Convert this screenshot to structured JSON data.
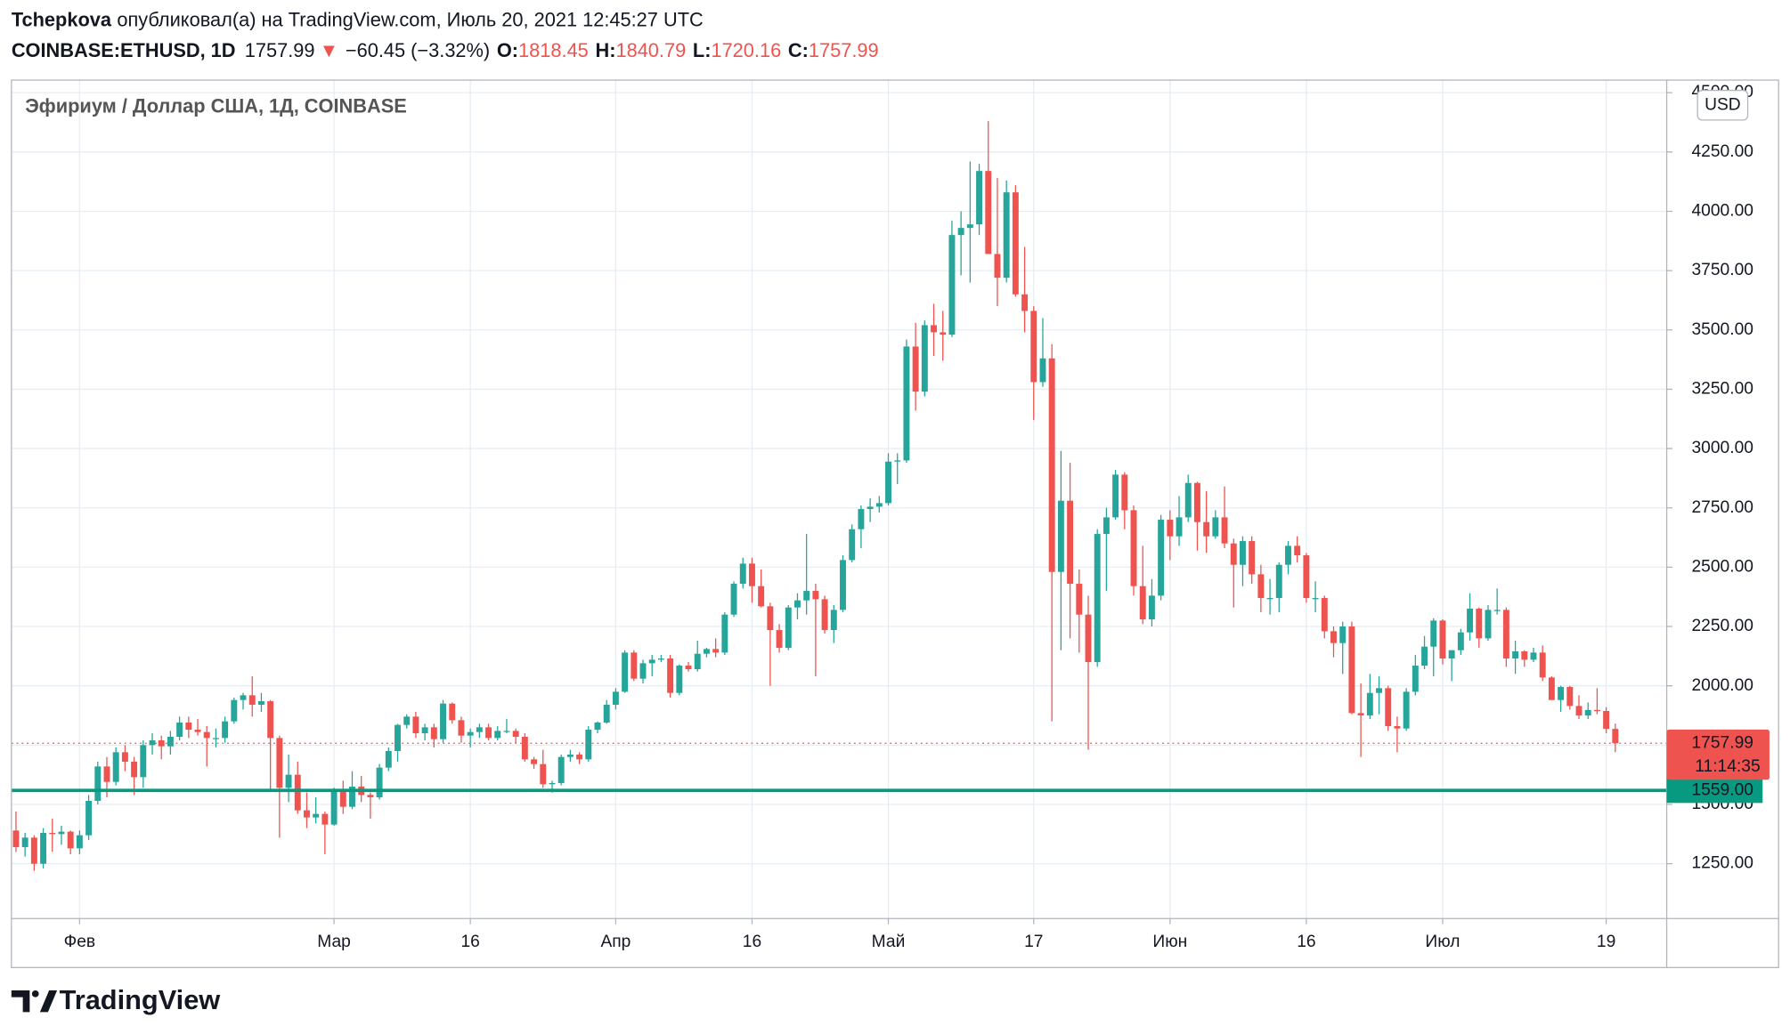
{
  "header": {
    "author": "Tchepkova",
    "published": "опубликовал(а) на TradingView.com, Июль 20, 2021 12:45:27 UTC",
    "symbol": "COINBASE:ETHUSD, 1D",
    "change_arrow": "▼",
    "change": "−60.45 (−3.32%)",
    "o": "O:",
    "h": "H:",
    "l": "L:",
    "c": "C:"
  },
  "footer": {
    "brand": "TradingView"
  },
  "chart_data": {
    "type": "candlestick",
    "title": "Эфириум / Доллар США, 1Д, COINBASE",
    "currency": "USD",
    "countdown": "11:14:35",
    "up_color": "#26a69a",
    "down_color": "#ef5350",
    "grid": true,
    "ylim": [
      1019,
      4553
    ],
    "yticks": [
      {
        "value": 1250,
        "label": "1250.00"
      },
      {
        "value": 1500,
        "label": "1500.00"
      },
      {
        "value": 1750,
        "label": "1750.00"
      },
      {
        "value": 2000,
        "label": "2000.00"
      },
      {
        "value": 2250,
        "label": "2250.00"
      },
      {
        "value": 2500,
        "label": "2500.00"
      },
      {
        "value": 2750,
        "label": "2750.00"
      },
      {
        "value": 3000,
        "label": "3000.00"
      },
      {
        "value": 3250,
        "label": "3250.00"
      },
      {
        "value": 3500,
        "label": "3500.00"
      },
      {
        "value": 3750,
        "label": "3750.00"
      },
      {
        "value": 4000,
        "label": "4000.00"
      },
      {
        "value": 4250,
        "label": "4250.00"
      },
      {
        "value": 4500,
        "label": "4500.00"
      }
    ],
    "xticks": [
      {
        "value": "02-01",
        "label": "Фев"
      },
      {
        "value": "03-01",
        "label": "Мар"
      },
      {
        "value": "03-16",
        "label": "16"
      },
      {
        "value": "04-01",
        "label": "Апр"
      },
      {
        "value": "04-16",
        "label": "16"
      },
      {
        "value": "05-01",
        "label": "Май"
      },
      {
        "value": "05-17",
        "label": "17"
      },
      {
        "value": "06-01",
        "label": "Июн"
      },
      {
        "value": "06-16",
        "label": "16"
      },
      {
        "value": "07-01",
        "label": "Июл"
      },
      {
        "value": "07-19",
        "label": "19"
      }
    ],
    "hline": {
      "value": 1559,
      "label": "1559.00",
      "color": "#089981"
    },
    "x": [
      "01-25",
      "01-26",
      "01-27",
      "01-28",
      "01-29",
      "01-30",
      "01-31",
      "02-01",
      "02-02",
      "02-03",
      "02-04",
      "02-05",
      "02-06",
      "02-07",
      "02-08",
      "02-09",
      "02-10",
      "02-11",
      "02-12",
      "02-13",
      "02-14",
      "02-15",
      "02-16",
      "02-17",
      "02-18",
      "02-19",
      "02-20",
      "02-21",
      "02-22",
      "02-23",
      "02-24",
      "02-25",
      "02-26",
      "02-27",
      "02-28",
      "03-01",
      "03-02",
      "03-03",
      "03-04",
      "03-05",
      "03-06",
      "03-07",
      "03-08",
      "03-09",
      "03-10",
      "03-11",
      "03-12",
      "03-13",
      "03-14",
      "03-15",
      "03-16",
      "03-17",
      "03-18",
      "03-19",
      "03-20",
      "03-21",
      "03-22",
      "03-23",
      "03-24",
      "03-25",
      "03-26",
      "03-27",
      "03-28",
      "03-29",
      "03-30",
      "03-31",
      "04-01",
      "04-02",
      "04-03",
      "04-04",
      "04-05",
      "04-06",
      "04-07",
      "04-08",
      "04-09",
      "04-10",
      "04-11",
      "04-12",
      "04-13",
      "04-14",
      "04-15",
      "04-16",
      "04-17",
      "04-18",
      "04-19",
      "04-20",
      "04-21",
      "04-22",
      "04-23",
      "04-24",
      "04-25",
      "04-26",
      "04-27",
      "04-28",
      "04-29",
      "04-30",
      "05-01",
      "05-02",
      "05-03",
      "05-04",
      "05-05",
      "05-06",
      "05-07",
      "05-08",
      "05-09",
      "05-10",
      "05-11",
      "05-12",
      "05-13",
      "05-14",
      "05-15",
      "05-16",
      "05-17",
      "05-18",
      "05-19",
      "05-20",
      "05-21",
      "05-22",
      "05-23",
      "05-24",
      "05-25",
      "05-26",
      "05-27",
      "05-28",
      "05-29",
      "05-30",
      "05-31",
      "06-01",
      "06-02",
      "06-03",
      "06-04",
      "06-05",
      "06-06",
      "06-07",
      "06-08",
      "06-09",
      "06-10",
      "06-11",
      "06-12",
      "06-13",
      "06-14",
      "06-15",
      "06-16",
      "06-17",
      "06-18",
      "06-19",
      "06-20",
      "06-21",
      "06-22",
      "06-23",
      "06-24",
      "06-25",
      "06-26",
      "06-27",
      "06-28",
      "06-29",
      "06-30",
      "07-01",
      "07-02",
      "07-03",
      "07-04",
      "07-05",
      "07-06",
      "07-07",
      "07-08",
      "07-09",
      "07-10",
      "07-11",
      "07-12",
      "07-13",
      "07-14",
      "07-15",
      "07-16",
      "07-17",
      "07-18",
      "07-19",
      "07-20"
    ],
    "candles": [
      [
        1390,
        1470,
        1300,
        1320
      ],
      [
        1320,
        1380,
        1280,
        1360
      ],
      [
        1360,
        1370,
        1220,
        1250
      ],
      [
        1250,
        1400,
        1230,
        1380
      ],
      [
        1380,
        1440,
        1300,
        1375
      ],
      [
        1375,
        1410,
        1330,
        1385
      ],
      [
        1385,
        1390,
        1290,
        1315
      ],
      [
        1315,
        1390,
        1290,
        1370
      ],
      [
        1370,
        1540,
        1350,
        1515
      ],
      [
        1515,
        1680,
        1500,
        1660
      ],
      [
        1660,
        1700,
        1530,
        1595
      ],
      [
        1595,
        1740,
        1580,
        1720
      ],
      [
        1720,
        1750,
        1640,
        1680
      ],
      [
        1680,
        1700,
        1540,
        1615
      ],
      [
        1615,
        1770,
        1570,
        1750
      ],
      [
        1750,
        1800,
        1710,
        1770
      ],
      [
        1770,
        1790,
        1690,
        1745
      ],
      [
        1745,
        1810,
        1710,
        1785
      ],
      [
        1785,
        1870,
        1770,
        1845
      ],
      [
        1845,
        1870,
        1780,
        1815
      ],
      [
        1815,
        1860,
        1790,
        1805
      ],
      [
        1805,
        1830,
        1660,
        1780
      ],
      [
        1780,
        1820,
        1740,
        1780
      ],
      [
        1780,
        1870,
        1760,
        1850
      ],
      [
        1850,
        1950,
        1840,
        1940
      ],
      [
        1940,
        1970,
        1900,
        1960
      ],
      [
        1960,
        2040,
        1870,
        1920
      ],
      [
        1920,
        1970,
        1890,
        1935
      ],
      [
        1935,
        1940,
        1560,
        1780
      ],
      [
        1780,
        1790,
        1360,
        1570
      ],
      [
        1570,
        1710,
        1510,
        1625
      ],
      [
        1625,
        1680,
        1460,
        1475
      ],
      [
        1475,
        1550,
        1400,
        1445
      ],
      [
        1445,
        1530,
        1420,
        1460
      ],
      [
        1460,
        1470,
        1290,
        1415
      ],
      [
        1415,
        1570,
        1410,
        1565
      ],
      [
        1565,
        1600,
        1460,
        1490
      ],
      [
        1490,
        1640,
        1480,
        1575
      ],
      [
        1575,
        1620,
        1510,
        1540
      ],
      [
        1540,
        1550,
        1440,
        1530
      ],
      [
        1530,
        1670,
        1520,
        1655
      ],
      [
        1655,
        1740,
        1640,
        1725
      ],
      [
        1725,
        1840,
        1680,
        1835
      ],
      [
        1835,
        1880,
        1820,
        1870
      ],
      [
        1870,
        1890,
        1780,
        1800
      ],
      [
        1800,
        1840,
        1770,
        1825
      ],
      [
        1825,
        1840,
        1740,
        1775
      ],
      [
        1775,
        1940,
        1760,
        1925
      ],
      [
        1925,
        1930,
        1840,
        1855
      ],
      [
        1855,
        1870,
        1760,
        1790
      ],
      [
        1790,
        1820,
        1740,
        1805
      ],
      [
        1805,
        1840,
        1780,
        1825
      ],
      [
        1825,
        1840,
        1770,
        1780
      ],
      [
        1780,
        1830,
        1770,
        1810
      ],
      [
        1810,
        1860,
        1800,
        1810
      ],
      [
        1810,
        1820,
        1760,
        1785
      ],
      [
        1785,
        1800,
        1680,
        1690
      ],
      [
        1690,
        1700,
        1650,
        1670
      ],
      [
        1670,
        1730,
        1570,
        1585
      ],
      [
        1585,
        1600,
        1550,
        1590
      ],
      [
        1590,
        1710,
        1580,
        1700
      ],
      [
        1700,
        1730,
        1680,
        1710
      ],
      [
        1710,
        1720,
        1670,
        1690
      ],
      [
        1690,
        1830,
        1680,
        1815
      ],
      [
        1815,
        1850,
        1800,
        1845
      ],
      [
        1845,
        1940,
        1840,
        1920
      ],
      [
        1920,
        1990,
        1900,
        1975
      ],
      [
        1975,
        2150,
        1970,
        2140
      ],
      [
        2140,
        2150,
        2020,
        2030
      ],
      [
        2030,
        2110,
        2010,
        2095
      ],
      [
        2095,
        2130,
        2040,
        2110
      ],
      [
        2110,
        2130,
        2100,
        2115
      ],
      [
        2115,
        2130,
        1950,
        1970
      ],
      [
        1970,
        2090,
        1960,
        2085
      ],
      [
        2085,
        2100,
        2060,
        2070
      ],
      [
        2070,
        2190,
        2060,
        2135
      ],
      [
        2135,
        2160,
        2120,
        2155
      ],
      [
        2155,
        2200,
        2120,
        2140
      ],
      [
        2140,
        2310,
        2130,
        2300
      ],
      [
        2300,
        2440,
        2290,
        2430
      ],
      [
        2430,
        2540,
        2410,
        2515
      ],
      [
        2515,
        2540,
        2350,
        2420
      ],
      [
        2420,
        2490,
        2330,
        2335
      ],
      [
        2335,
        2350,
        2000,
        2235
      ],
      [
        2235,
        2260,
        2140,
        2160
      ],
      [
        2160,
        2340,
        2150,
        2330
      ],
      [
        2330,
        2390,
        2280,
        2360
      ],
      [
        2360,
        2640,
        2300,
        2400
      ],
      [
        2400,
        2430,
        2040,
        2365
      ],
      [
        2365,
        2380,
        2220,
        2235
      ],
      [
        2235,
        2340,
        2180,
        2320
      ],
      [
        2320,
        2550,
        2310,
        2530
      ],
      [
        2530,
        2680,
        2520,
        2660
      ],
      [
        2660,
        2760,
        2580,
        2745
      ],
      [
        2745,
        2790,
        2690,
        2755
      ],
      [
        2755,
        2800,
        2730,
        2770
      ],
      [
        2770,
        2980,
        2760,
        2945
      ],
      [
        2945,
        2980,
        2850,
        2950
      ],
      [
        2950,
        3460,
        2940,
        3430
      ],
      [
        3430,
        3530,
        3160,
        3240
      ],
      [
        3240,
        3540,
        3220,
        3520
      ],
      [
        3520,
        3610,
        3390,
        3490
      ],
      [
        3490,
        3580,
        3370,
        3480
      ],
      [
        3480,
        3960,
        3470,
        3900
      ],
      [
        3900,
        4000,
        3730,
        3930
      ],
      [
        3930,
        4210,
        3700,
        3945
      ],
      [
        3945,
        4200,
        3900,
        4170
      ],
      [
        4170,
        4380,
        3820,
        3820
      ],
      [
        3820,
        4140,
        3600,
        3720
      ],
      [
        3720,
        4130,
        3700,
        4080
      ],
      [
        4080,
        4110,
        3640,
        3650
      ],
      [
        3650,
        3850,
        3490,
        3580
      ],
      [
        3580,
        3600,
        3120,
        3280
      ],
      [
        3280,
        3550,
        3260,
        3380
      ],
      [
        3380,
        3440,
        1850,
        2480
      ],
      [
        2480,
        2990,
        2150,
        2780
      ],
      [
        2780,
        2940,
        2200,
        2430
      ],
      [
        2430,
        2490,
        2140,
        2300
      ],
      [
        2300,
        2380,
        1730,
        2100
      ],
      [
        2100,
        2660,
        2080,
        2640
      ],
      [
        2640,
        2750,
        2400,
        2710
      ],
      [
        2710,
        2910,
        2700,
        2890
      ],
      [
        2890,
        2900,
        2660,
        2740
      ],
      [
        2740,
        2760,
        2380,
        2420
      ],
      [
        2420,
        2590,
        2260,
        2280
      ],
      [
        2280,
        2450,
        2250,
        2380
      ],
      [
        2380,
        2720,
        2360,
        2700
      ],
      [
        2700,
        2740,
        2530,
        2630
      ],
      [
        2630,
        2800,
        2590,
        2710
      ],
      [
        2710,
        2890,
        2690,
        2855
      ],
      [
        2855,
        2860,
        2570,
        2690
      ],
      [
        2690,
        2820,
        2560,
        2630
      ],
      [
        2630,
        2740,
        2620,
        2710
      ],
      [
        2710,
        2840,
        2580,
        2600
      ],
      [
        2600,
        2620,
        2330,
        2510
      ],
      [
        2510,
        2630,
        2420,
        2610
      ],
      [
        2610,
        2630,
        2430,
        2470
      ],
      [
        2470,
        2510,
        2310,
        2370
      ],
      [
        2370,
        2450,
        2300,
        2370
      ],
      [
        2370,
        2520,
        2310,
        2510
      ],
      [
        2510,
        2610,
        2470,
        2590
      ],
      [
        2590,
        2630,
        2520,
        2550
      ],
      [
        2550,
        2560,
        2350,
        2370
      ],
      [
        2370,
        2440,
        2310,
        2370
      ],
      [
        2370,
        2380,
        2200,
        2230
      ],
      [
        2230,
        2250,
        2120,
        2180
      ],
      [
        2180,
        2270,
        2050,
        2250
      ],
      [
        2250,
        2270,
        1880,
        1885
      ],
      [
        1885,
        2010,
        1700,
        1875
      ],
      [
        1875,
        2050,
        1860,
        1970
      ],
      [
        1970,
        2040,
        1880,
        1990
      ],
      [
        1990,
        2000,
        1810,
        1830
      ],
      [
        1830,
        1870,
        1720,
        1820
      ],
      [
        1820,
        1990,
        1810,
        1975
      ],
      [
        1975,
        2130,
        1960,
        2085
      ],
      [
        2085,
        2210,
        2070,
        2165
      ],
      [
        2165,
        2285,
        2040,
        2275
      ],
      [
        2275,
        2280,
        2090,
        2115
      ],
      [
        2115,
        2150,
        2020,
        2150
      ],
      [
        2150,
        2240,
        2130,
        2225
      ],
      [
        2225,
        2390,
        2190,
        2325
      ],
      [
        2325,
        2330,
        2160,
        2200
      ],
      [
        2200,
        2340,
        2190,
        2320
      ],
      [
        2320,
        2410,
        2300,
        2320
      ],
      [
        2320,
        2330,
        2080,
        2115
      ],
      [
        2115,
        2190,
        2050,
        2145
      ],
      [
        2145,
        2150,
        2080,
        2110
      ],
      [
        2110,
        2160,
        2100,
        2140
      ],
      [
        2140,
        2170,
        2020,
        2035
      ],
      [
        2035,
        2040,
        1940,
        1940
      ],
      [
        1940,
        2000,
        1890,
        1995
      ],
      [
        1995,
        2000,
        1900,
        1915
      ],
      [
        1915,
        1960,
        1860,
        1875
      ],
      [
        1875,
        1930,
        1860,
        1898
      ],
      [
        1898,
        1990,
        1880,
        1894
      ],
      [
        1894,
        1910,
        1800,
        1818.45
      ],
      [
        1818.45,
        1840.79,
        1720.16,
        1757.99
      ]
    ]
  }
}
